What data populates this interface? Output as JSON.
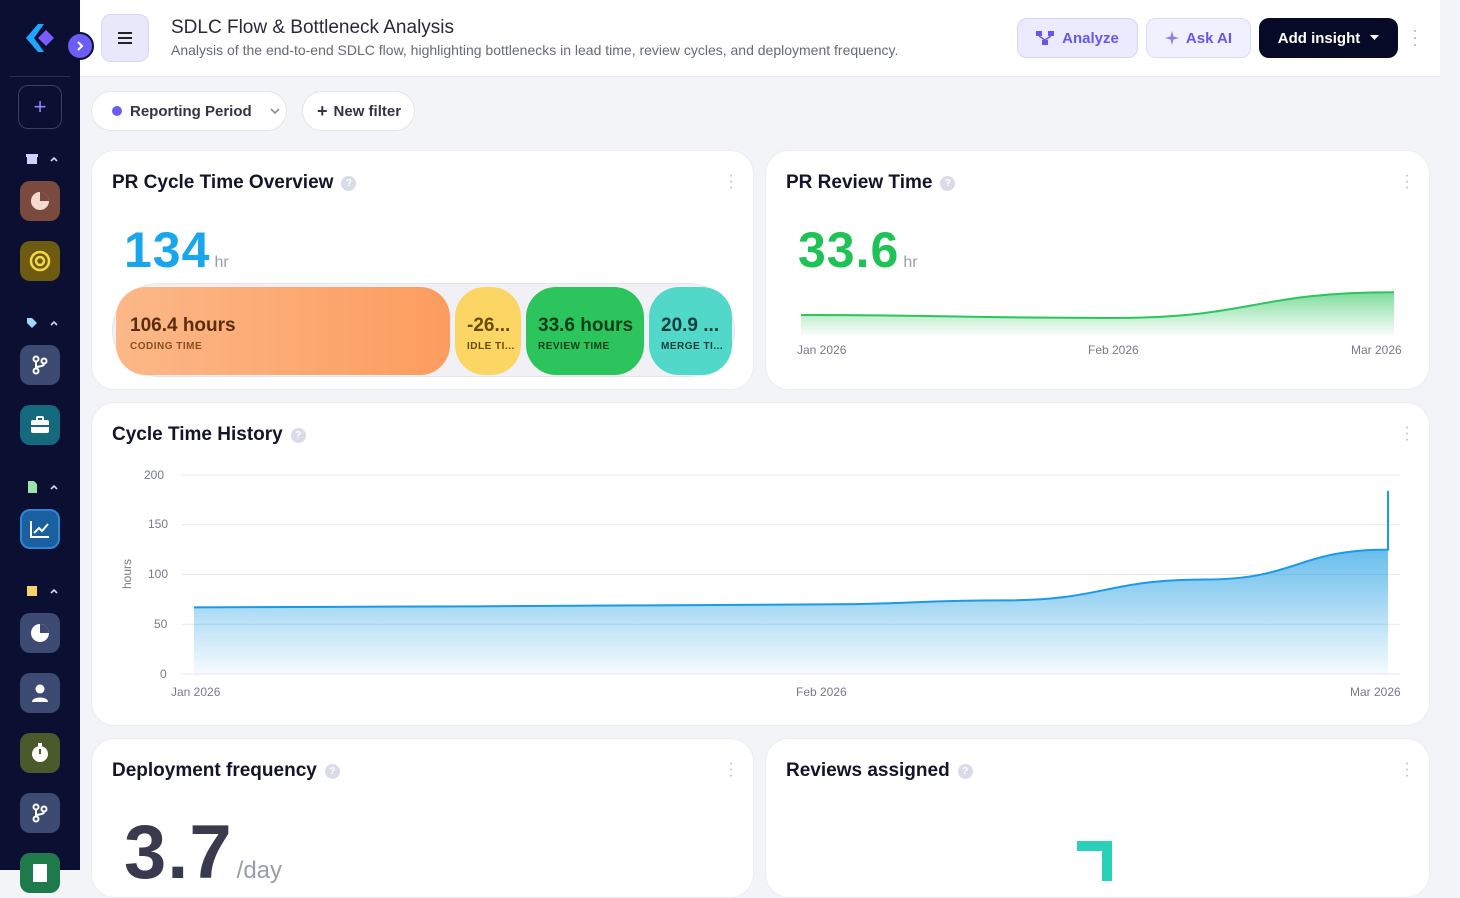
{
  "header": {
    "title": "SDLC Flow & Bottleneck Analysis",
    "subtitle": "Analysis of the end-to-end SDLC flow, highlighting bottlenecks in lead time, review cycles, and deployment frequency.",
    "analyze_label": "Analyze",
    "ask_ai_label": "Ask AI",
    "add_insight_label": "Add insight"
  },
  "filters": {
    "reporting_period_label": "Reporting Period",
    "new_filter_label": "New filter"
  },
  "colors": {
    "sidebar": "#0b1033",
    "accent": "#6b5cf2",
    "coding": "#fc9c5f",
    "idle": "#fbd664",
    "review": "#2cc45c",
    "merge": "#52d8c8",
    "history": "#1a9be3"
  },
  "pr_cycle_time": {
    "title": "PR Cycle Time Overview",
    "value": "134",
    "unit": "hr",
    "segments": [
      {
        "value": "106.4 hours",
        "label": "CODING TIME"
      },
      {
        "value": "-26...",
        "label": "IDLE TI..."
      },
      {
        "value": "33.6 hours",
        "label": "REVIEW TIME"
      },
      {
        "value": "20.9 ...",
        "label": "MERGE TI..."
      }
    ]
  },
  "pr_review_time": {
    "title": "PR Review Time",
    "value": "33.6",
    "unit": "hr",
    "x_ticks": [
      "Jan 2026",
      "Feb 2026",
      "Mar 2026"
    ]
  },
  "cycle_time_history": {
    "title": "Cycle Time History",
    "ylabel": "hours",
    "y_ticks": [
      "200",
      "150",
      "100",
      "50",
      "0"
    ],
    "x_ticks": [
      "Jan 2026",
      "Feb 2026",
      "Mar 2026"
    ]
  },
  "deployment_frequency": {
    "title": "Deployment frequency",
    "value": "3.7",
    "unit": "/day"
  },
  "reviews_assigned": {
    "title": "Reviews assigned"
  },
  "chart_data": [
    {
      "type": "area",
      "title": "Cycle Time History",
      "ylabel": "hours",
      "ylim": [
        0,
        200
      ],
      "x": [
        "2026-01-01",
        "2026-01-15",
        "2026-02-01",
        "2026-02-10",
        "2026-02-20",
        "2026-03-01",
        "2026-03-15"
      ],
      "x_tick_labels": [
        "Jan 2026",
        "Feb 2026",
        "Mar 2026"
      ],
      "values": [
        67,
        68,
        70,
        74,
        95,
        125,
        184
      ],
      "grid": true
    },
    {
      "type": "area",
      "title": "PR Review Time",
      "x": [
        "2026-01-01",
        "2026-02-01",
        "2026-03-01"
      ],
      "x_tick_labels": [
        "Jan 2026",
        "Feb 2026",
        "Mar 2026"
      ],
      "values": [
        26,
        25,
        33.6
      ],
      "grid": false
    }
  ]
}
